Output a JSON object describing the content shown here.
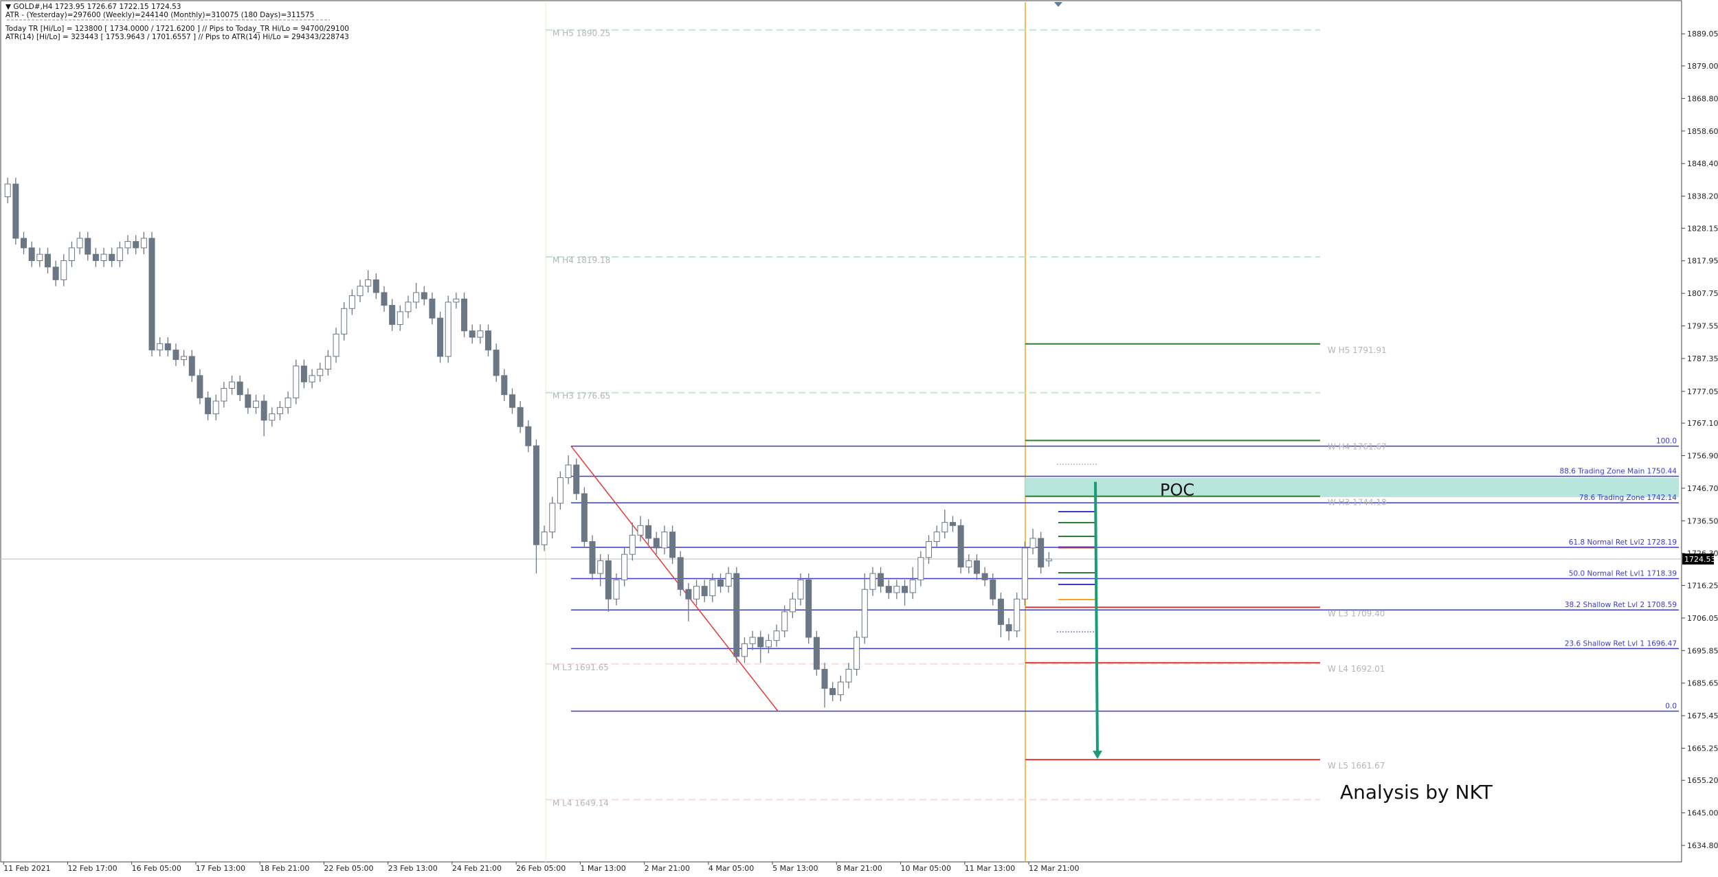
{
  "chart_data": {
    "type": "candlestick",
    "header": [
      "▼ GOLD#,H4  1723.95 1726.67 1722.15 1724.53",
      "ATR - (Yesterday)=297600      (Weekly)=244140      (Monthly)=310075      (180 Days)=311575",
      "Today  TR [Hi/Lo] = 123800 [ 1734.0000 / 1721.6200 ]   // Pips to Today_TR Hi/Lo   = 94700/29100",
      "ATR(14)      [Hi/Lo] = 323443 [ 1753.9643 / 1701.6557 ]  // Pips to ATR(14) Hi/Lo      = 294343/228743"
    ],
    "categories": [
      "11 Feb 2021",
      null,
      null,
      null,
      null,
      null,
      null,
      null,
      "12 Feb 17:00",
      null,
      null,
      null,
      null,
      null,
      null,
      null,
      "16 Feb 05:00",
      null,
      null,
      null,
      null,
      null,
      null,
      null,
      "17 Feb 13:00",
      null,
      null,
      null,
      null,
      null,
      null,
      null,
      "18 Feb 21:00",
      null,
      null,
      null,
      null,
      null,
      null,
      null,
      "22 Feb 05:00",
      null,
      null,
      null,
      null,
      null,
      null,
      null,
      "23 Feb 13:00",
      null,
      null,
      null,
      null,
      null,
      null,
      null,
      "24 Feb 21:00",
      null,
      null,
      null,
      null,
      null,
      null,
      null,
      "26 Feb 05:00",
      null,
      null,
      null,
      null,
      null,
      null,
      null,
      "1 Mar 13:00",
      null,
      null,
      null,
      null,
      null,
      null,
      null,
      "2 Mar 21:00",
      null,
      null,
      null,
      null,
      null,
      null,
      null,
      "4 Mar 05:00",
      null,
      null,
      null,
      null,
      null,
      null,
      null,
      "5 Mar 13:00",
      null,
      null,
      null,
      null,
      null,
      null,
      null,
      "8 Mar 21:00",
      null,
      null,
      null,
      null,
      null,
      null,
      null,
      "10 Mar 05:00",
      null,
      null,
      null,
      null,
      null,
      null,
      null,
      "11 Mar 13:00",
      null,
      null,
      null,
      null,
      null,
      null,
      null,
      "12 Mar 21:00",
      null,
      null
    ],
    "open": [
      1838,
      1842,
      1825,
      1822,
      1818,
      1820,
      1816,
      1812,
      1818,
      1822,
      1825,
      1820,
      1818,
      1820,
      1818,
      1822,
      1824,
      1822,
      1825,
      1790,
      1792,
      1790,
      1787,
      1788,
      1782,
      1775,
      1770,
      1774,
      1778,
      1780,
      1776,
      1772,
      1774,
      1768,
      1770,
      1772,
      1775,
      1785,
      1780,
      1782,
      1784,
      1788,
      1795,
      1803,
      1807,
      1810,
      1812,
      1808,
      1804,
      1798,
      1802,
      1805,
      1808,
      1806,
      1800,
      1788,
      1805,
      1806,
      1796,
      1794,
      1796,
      1790,
      1782,
      1776,
      1772,
      1766,
      1760,
      1729,
      1733,
      1742,
      1750,
      1754,
      1745,
      1730,
      1720,
      1724,
      1712,
      1718,
      1726,
      1732,
      1735,
      1731,
      1728,
      1733,
      1725,
      1715,
      1712,
      1716,
      1713,
      1718,
      1716,
      1720,
      1694,
      1698,
      1700,
      1697,
      1699,
      1702,
      1708,
      1712,
      1718,
      1700,
      1690,
      1684,
      1682,
      1686,
      1690,
      1700,
      1715,
      1720,
      1716,
      1714,
      1716,
      1714,
      1718,
      1725,
      1730,
      1733,
      1736,
      1735,
      1722,
      1724,
      1720,
      1718,
      1712,
      1704,
      1702,
      1712,
      1728,
      1731,
      1723.95
    ],
    "high": [
      1844,
      1844,
      1827,
      1824,
      1822,
      1822,
      1818,
      1820,
      1824,
      1827,
      1827,
      1822,
      1822,
      1822,
      1824,
      1826,
      1826,
      1827,
      1827,
      1794,
      1794,
      1792,
      1790,
      1790,
      1784,
      1777,
      1776,
      1780,
      1782,
      1782,
      1778,
      1776,
      1776,
      1772,
      1774,
      1777,
      1787,
      1787,
      1784,
      1786,
      1790,
      1797,
      1805,
      1809,
      1812,
      1815,
      1814,
      1810,
      1806,
      1804,
      1807,
      1811,
      1810,
      1808,
      1802,
      1807,
      1808,
      1808,
      1798,
      1798,
      1798,
      1792,
      1784,
      1778,
      1774,
      1768,
      1762,
      1735,
      1744,
      1752,
      1757,
      1756,
      1747,
      1732,
      1726,
      1726,
      1720,
      1728,
      1736,
      1738,
      1737,
      1733,
      1735,
      1735,
      1727,
      1717,
      1718,
      1718,
      1720,
      1720,
      1722,
      1722,
      1700,
      1702,
      1702,
      1701,
      1704,
      1710,
      1714,
      1720,
      1720,
      1702,
      1692,
      1686,
      1688,
      1692,
      1702,
      1720,
      1722,
      1722,
      1718,
      1718,
      1718,
      1722,
      1727,
      1732,
      1735,
      1740,
      1738,
      1737,
      1726,
      1726,
      1722,
      1720,
      1714,
      1706,
      1714,
      1730,
      1734,
      1733,
      1726.67
    ],
    "low": [
      1836,
      1823,
      1820,
      1816,
      1816,
      1814,
      1810,
      1810,
      1816,
      1820,
      1818,
      1816,
      1816,
      1816,
      1816,
      1820,
      1820,
      1820,
      1788,
      1788,
      1788,
      1785,
      1785,
      1780,
      1773,
      1768,
      1768,
      1772,
      1776,
      1774,
      1770,
      1770,
      1763,
      1766,
      1768,
      1770,
      1773,
      1778,
      1778,
      1780,
      1782,
      1786,
      1793,
      1801,
      1805,
      1808,
      1806,
      1802,
      1796,
      1796,
      1800,
      1803,
      1804,
      1798,
      1786,
      1786,
      1803,
      1794,
      1792,
      1792,
      1788,
      1780,
      1774,
      1770,
      1764,
      1758,
      1720,
      1727,
      1731,
      1740,
      1748,
      1743,
      1728,
      1718,
      1716,
      1708,
      1710,
      1716,
      1724,
      1730,
      1729,
      1726,
      1726,
      1723,
      1713,
      1705,
      1710,
      1711,
      1711,
      1714,
      1714,
      1692,
      1692,
      1696,
      1692,
      1695,
      1697,
      1700,
      1706,
      1710,
      1698,
      1688,
      1678,
      1680,
      1680,
      1684,
      1688,
      1698,
      1713,
      1714,
      1712,
      1712,
      1710,
      1712,
      1716,
      1723,
      1728,
      1731,
      1733,
      1720,
      1720,
      1718,
      1716,
      1710,
      1700,
      1699,
      1700,
      1710,
      1726,
      1720,
      1722.15
    ],
    "close": [
      1842,
      1825,
      1822,
      1818,
      1820,
      1816,
      1812,
      1818,
      1822,
      1825,
      1820,
      1818,
      1820,
      1818,
      1822,
      1824,
      1822,
      1825,
      1790,
      1792,
      1790,
      1787,
      1788,
      1782,
      1775,
      1770,
      1774,
      1778,
      1780,
      1776,
      1772,
      1774,
      1768,
      1770,
      1772,
      1775,
      1785,
      1780,
      1782,
      1784,
      1788,
      1795,
      1803,
      1807,
      1810,
      1812,
      1808,
      1804,
      1798,
      1802,
      1805,
      1808,
      1806,
      1800,
      1788,
      1805,
      1806,
      1796,
      1794,
      1796,
      1790,
      1782,
      1776,
      1772,
      1766,
      1760,
      1729,
      1733,
      1742,
      1750,
      1754,
      1745,
      1730,
      1720,
      1724,
      1712,
      1718,
      1726,
      1732,
      1735,
      1731,
      1728,
      1733,
      1725,
      1715,
      1712,
      1716,
      1713,
      1718,
      1716,
      1720,
      1694,
      1698,
      1700,
      1697,
      1699,
      1702,
      1708,
      1712,
      1718,
      1700,
      1690,
      1684,
      1682,
      1686,
      1690,
      1700,
      1715,
      1720,
      1716,
      1714,
      1716,
      1714,
      1718,
      1725,
      1730,
      1733,
      1736,
      1735,
      1722,
      1724,
      1720,
      1718,
      1712,
      1704,
      1702,
      1712,
      1728,
      1731,
      1722,
      1724.53
    ],
    "bull_color": "#ffffff",
    "bear_color": "#6b7785",
    "wick_color": "#6b7785",
    "ylim": [
      1629.65,
      1899.0
    ],
    "yticks": [
      {
        "value": 1889.05,
        "label": "1889.05"
      },
      {
        "value": 1879.0,
        "label": "1879.00"
      },
      {
        "value": 1868.8,
        "label": "1868.80"
      },
      {
        "value": 1858.6,
        "label": "1858.60"
      },
      {
        "value": 1848.4,
        "label": "1848.40"
      },
      {
        "value": 1838.2,
        "label": "1838.20"
      },
      {
        "value": 1828.15,
        "label": "1828.15"
      },
      {
        "value": 1817.95,
        "label": "1817.95"
      },
      {
        "value": 1807.75,
        "label": "1807.75"
      },
      {
        "value": 1797.55,
        "label": "1797.55"
      },
      {
        "value": 1787.35,
        "label": "1787.35"
      },
      {
        "value": 1777.05,
        "label": "1777.05"
      },
      {
        "value": 1767.1,
        "label": "1767.10"
      },
      {
        "value": 1756.9,
        "label": "1756.90"
      },
      {
        "value": 1746.7,
        "label": "1746.70"
      },
      {
        "value": 1736.5,
        "label": "1736.50"
      },
      {
        "value": 1726.3,
        "label": "1726.30"
      },
      {
        "value": 1716.25,
        "label": "1716.25"
      },
      {
        "value": 1706.05,
        "label": "1706.05"
      },
      {
        "value": 1695.85,
        "label": "1695.85"
      },
      {
        "value": 1685.65,
        "label": "1685.65"
      },
      {
        "value": 1675.45,
        "label": "1675.45"
      },
      {
        "value": 1665.25,
        "label": "1665.25"
      },
      {
        "value": 1655.2,
        "label": "1655.20"
      },
      {
        "value": 1645.0,
        "label": "1645.00"
      },
      {
        "value": 1634.8,
        "label": "1634.80"
      }
    ],
    "current_price": 1724.53,
    "monthly_levels": [
      {
        "label": "M  H5 1890.25",
        "value": 1890.25,
        "color": "#bfe8c6"
      },
      {
        "label": "M  H4 1819.18",
        "value": 1819.18,
        "color": "#bfe8c6"
      },
      {
        "label": "M  H3 1776.65",
        "value": 1776.65,
        "color": "#bfe8c6"
      },
      {
        "label": "M  L3 1691.65",
        "value": 1691.65,
        "color": "#f4dede"
      },
      {
        "label": "M  L4 1649.14",
        "value": 1649.14,
        "color": "#f4dede"
      }
    ],
    "weekly_levels": [
      {
        "label": "W  H5 1791.91",
        "value": 1791.91,
        "color": "#2e7d32"
      },
      {
        "label": "W  H4 1761.67",
        "value": 1761.67,
        "color": "#2e7d32"
      },
      {
        "label": "W  H3 1744.18",
        "value": 1744.18,
        "color": "#2e7d32"
      },
      {
        "label": "W  L3 1709.40",
        "value": 1709.4,
        "color": "#e53935"
      },
      {
        "label": "W  L4 1692.01",
        "value": 1692.01,
        "color": "#e53935"
      },
      {
        "label": "W  L5 1661.67",
        "value": 1661.67,
        "color": "#e53935"
      }
    ],
    "fib_levels": [
      {
        "label": "100.0",
        "value": 1759.9
      },
      {
        "label": "88.6 Trading Zone Main 1750.44",
        "value": 1750.44
      },
      {
        "label": "78.6 Trading Zone 1742.14",
        "value": 1742.14
      },
      {
        "label": "61.8 Normal Ret Lvl2 1728.19",
        "value": 1728.19
      },
      {
        "label": "50.0 Normal Ret Lvl1 1718.39",
        "value": 1718.39
      },
      {
        "label": "38.2 Shallow Ret Lvl 2 1708.59",
        "value": 1708.59
      },
      {
        "label": "23.6 Shallow Ret Lvl 1 1696.47",
        "value": 1696.47
      },
      {
        "label": "0.0",
        "value": 1676.87
      }
    ],
    "fib_color": "#3a3ad0",
    "zones": [
      {
        "label": "POC",
        "range": [
          1743.9,
          1750.0
        ],
        "color": "#b9e6dc"
      }
    ],
    "annotation": "Analysis by NKT"
  }
}
